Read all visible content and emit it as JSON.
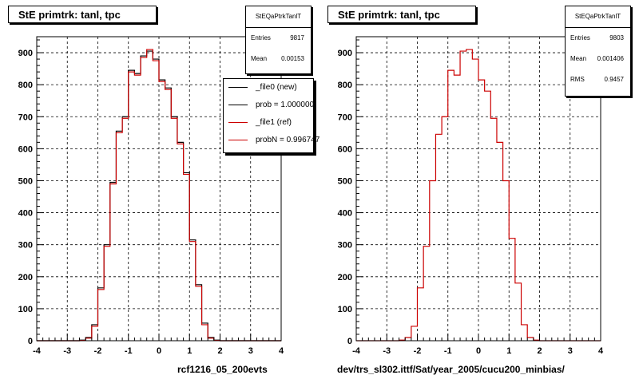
{
  "chart_data": [
    {
      "type": "histogram",
      "title": "StE primtrk: tanl, tpc",
      "xlabel": "rcf1216_05_200evts",
      "xlim": [
        -4,
        4
      ],
      "ylim": [
        0,
        950
      ],
      "xticks": [
        -4,
        -3,
        -2,
        -1,
        0,
        1,
        2,
        3,
        4
      ],
      "yticks": [
        0,
        100,
        200,
        300,
        400,
        500,
        600,
        700,
        800,
        900
      ],
      "grid": true,
      "bin_edges": [
        -4.0,
        -3.8,
        -3.6,
        -3.4,
        -3.2,
        -3.0,
        -2.8,
        -2.6,
        -2.4,
        -2.2,
        -2.0,
        -1.8,
        -1.6,
        -1.4,
        -1.2,
        -1.0,
        -0.8,
        -0.6,
        -0.4,
        -0.2,
        0.0,
        0.2,
        0.4,
        0.6,
        0.8,
        1.0,
        1.2,
        1.4,
        1.6,
        1.8,
        2.0,
        2.2,
        2.4,
        2.6,
        2.8,
        3.0,
        3.2,
        3.4,
        3.6,
        3.8,
        4.0
      ],
      "series": [
        {
          "name": "_file0 (new)",
          "color": "#000000",
          "values": [
            0,
            0,
            0,
            0,
            0,
            0,
            0,
            2,
            10,
            50,
            165,
            300,
            495,
            655,
            700,
            845,
            835,
            890,
            905,
            880,
            815,
            790,
            700,
            620,
            525,
            315,
            175,
            55,
            10,
            2,
            0,
            0,
            0,
            0,
            0,
            0,
            0,
            0,
            0,
            0
          ]
        },
        {
          "name": "_file1 (ref)",
          "color": "#cc0000",
          "values": [
            0,
            0,
            0,
            0,
            0,
            0,
            0,
            1,
            8,
            45,
            160,
            295,
            490,
            650,
            695,
            840,
            830,
            885,
            910,
            875,
            810,
            785,
            695,
            615,
            520,
            310,
            170,
            50,
            8,
            1,
            0,
            0,
            0,
            0,
            0,
            0,
            0,
            0,
            0,
            0
          ]
        }
      ],
      "stats": {
        "name": "StEQaPtrkTanlT",
        "entries_label": "Entries",
        "entries": "9817",
        "mean_label": "Mean",
        "mean": "0.00153"
      },
      "legend": {
        "placement": "top-right",
        "entries": [
          {
            "text": "_file0 (new)",
            "color": "#000000"
          },
          {
            "text": "prob = 1.000000",
            "color": "#000000"
          },
          {
            "text": "_file1 (ref)",
            "color": "#cc0000"
          },
          {
            "text": "probN = 0.996747",
            "color": "#cc0000"
          }
        ]
      }
    },
    {
      "type": "histogram",
      "title": "StE primtrk: tanl, tpc",
      "xlabel": "dev/trs_sl302.ittf/Sat/year_2005/cucu200_minbias/",
      "xlim": [
        -4,
        4
      ],
      "ylim": [
        0,
        950
      ],
      "xticks": [
        -4,
        -3,
        -2,
        -1,
        0,
        1,
        2,
        3,
        4
      ],
      "yticks": [
        0,
        100,
        200,
        300,
        400,
        500,
        600,
        700,
        800,
        900
      ],
      "grid": true,
      "bin_edges": [
        -4.0,
        -3.8,
        -3.6,
        -3.4,
        -3.2,
        -3.0,
        -2.8,
        -2.6,
        -2.4,
        -2.2,
        -2.0,
        -1.8,
        -1.6,
        -1.4,
        -1.2,
        -1.0,
        -0.8,
        -0.6,
        -0.4,
        -0.2,
        0.0,
        0.2,
        0.4,
        0.6,
        0.8,
        1.0,
        1.2,
        1.4,
        1.6,
        1.8,
        2.0,
        2.2,
        2.4,
        2.6,
        2.8,
        3.0,
        3.2,
        3.4,
        3.6,
        3.8,
        4.0
      ],
      "series": [
        {
          "color": "#cc0000",
          "values": [
            0,
            0,
            0,
            0,
            0,
            0,
            0,
            2,
            10,
            45,
            165,
            295,
            500,
            645,
            700,
            845,
            830,
            905,
            910,
            880,
            815,
            780,
            695,
            620,
            500,
            320,
            180,
            50,
            10,
            2,
            0,
            0,
            0,
            0,
            0,
            0,
            0,
            0,
            0,
            0
          ]
        }
      ],
      "stats": {
        "name": "StEQaPtrkTanlT",
        "entries_label": "Entries",
        "entries": "9803",
        "mean_label": "Mean",
        "mean": "0.001406",
        "rms_label": "RMS",
        "rms": "0.9457"
      }
    }
  ]
}
